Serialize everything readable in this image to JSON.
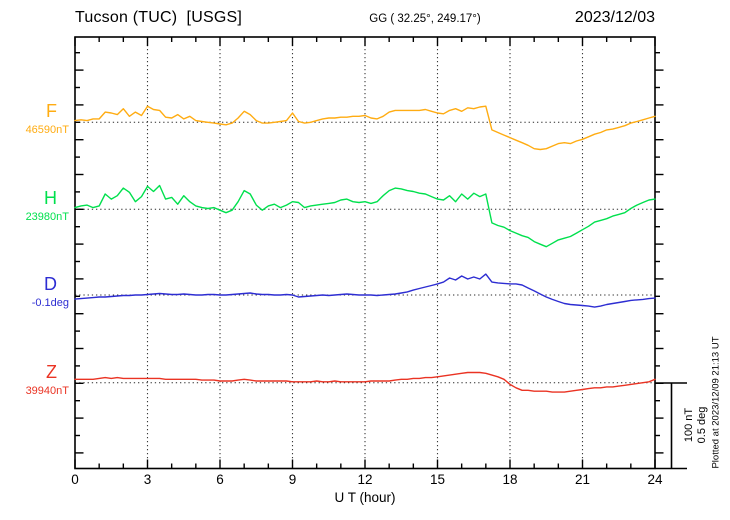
{
  "header": {
    "station": "Tucson (TUC)  [USGS]",
    "coords": "GG ( 32.25°, 249.17°)",
    "date": "2023/12/03"
  },
  "channels": [
    {
      "letter": "F",
      "value_label": "46590nT",
      "color": "#ffac12"
    },
    {
      "letter": "H",
      "value_label": "23980nT",
      "color": "#00e04d"
    },
    {
      "letter": "D",
      "value_label": "-0.1deg",
      "color": "#2d2dd2"
    },
    {
      "letter": "Z",
      "value_label": "39940nT",
      "color": "#ea3323"
    }
  ],
  "xaxis": {
    "label": "U T (hour)",
    "tick_labels": [
      "0",
      "3",
      "6",
      "9",
      "12",
      "15",
      "18",
      "21",
      "24"
    ]
  },
  "scale_bar": {
    "line1": "100 nT",
    "line2": "0.5 deg"
  },
  "timestamp_note": "Plotted at 2023/12/09 21:13 UT",
  "chart_data": {
    "type": "line",
    "title": "Tucson (TUC) [USGS] magnetogram 2023/12/03",
    "xlabel": "U T (hour)",
    "x_start_hour": 0,
    "x_end_hour": 24,
    "x_step_hour": 0.25,
    "x_ticks": [
      0,
      3,
      6,
      9,
      12,
      15,
      18,
      21,
      24
    ],
    "grid": "dotted vertical every 3 h, dotted baseline per trace",
    "legend_position": "left margin (colored channel letters)",
    "scale_per_division": {
      "nT": 100,
      "deg": 0.5
    },
    "series": [
      {
        "name": "F",
        "units": "nT",
        "base": 46590,
        "values": [
          46592,
          46593,
          46592,
          46594,
          46594,
          46602,
          46601,
          46599,
          46606,
          46597,
          46602,
          46598,
          46609,
          46605,
          46604,
          46596,
          46595,
          46599,
          46594,
          46597,
          46592,
          46591,
          46590,
          46589,
          46588,
          46587,
          46589,
          46595,
          46603,
          46599,
          46592,
          46589,
          46589,
          46590,
          46591,
          46592,
          46601,
          46591,
          46589,
          46590,
          46592,
          46594,
          46595,
          46595,
          46596,
          46596,
          46597,
          46597,
          46598,
          46595,
          46594,
          46597,
          46602,
          46604,
          46604,
          46604,
          46604,
          46604,
          46605,
          46603,
          46601,
          46600,
          46604,
          46606,
          46603,
          46607,
          46606,
          46608,
          46609,
          46581,
          46578,
          46575,
          46572,
          46569,
          46566,
          46563,
          46559,
          46558,
          46559,
          46562,
          46565,
          46566,
          46565,
          46568,
          46570,
          46573,
          46576,
          46578,
          46581,
          46582,
          46584,
          46586,
          46589,
          46591,
          46593,
          46595,
          46597
        ]
      },
      {
        "name": "H",
        "units": "nT",
        "base": 23980,
        "values": [
          23982,
          23984,
          23985,
          23982,
          23984,
          23998,
          23992,
          23996,
          24005,
          24000,
          23989,
          23995,
          24007,
          24001,
          24008,
          23992,
          23994,
          23986,
          23996,
          23989,
          23984,
          23982,
          23981,
          23982,
          23979,
          23976,
          23979,
          23989,
          24002,
          23998,
          23985,
          23979,
          23984,
          23986,
          23982,
          23985,
          23989,
          23988,
          23982,
          23984,
          23985,
          23986,
          23987,
          23988,
          23991,
          23992,
          23989,
          23988,
          23989,
          23987,
          23989,
          23996,
          24002,
          24005,
          24004,
          24002,
          24001,
          23999,
          23998,
          23995,
          23992,
          23991,
          23996,
          23989,
          23998,
          23992,
          23999,
          23995,
          23998,
          23964,
          23961,
          23959,
          23955,
          23952,
          23949,
          23947,
          23942,
          23939,
          23936,
          23940,
          23944,
          23946,
          23948,
          23952,
          23956,
          23960,
          23965,
          23967,
          23969,
          23972,
          23974,
          23976,
          23981,
          23985,
          23988,
          23991,
          23992
        ]
      },
      {
        "name": "D",
        "units": "deg",
        "base": -0.1,
        "values": [
          -0.124,
          -0.121,
          -0.118,
          -0.115,
          -0.112,
          -0.112,
          -0.109,
          -0.106,
          -0.103,
          -0.103,
          -0.1,
          -0.1,
          -0.097,
          -0.094,
          -0.091,
          -0.094,
          -0.097,
          -0.097,
          -0.094,
          -0.097,
          -0.1,
          -0.1,
          -0.097,
          -0.097,
          -0.1,
          -0.1,
          -0.097,
          -0.094,
          -0.091,
          -0.088,
          -0.094,
          -0.097,
          -0.097,
          -0.1,
          -0.1,
          -0.097,
          -0.1,
          -0.112,
          -0.109,
          -0.106,
          -0.103,
          -0.1,
          -0.103,
          -0.1,
          -0.097,
          -0.094,
          -0.097,
          -0.1,
          -0.1,
          -0.1,
          -0.103,
          -0.1,
          -0.097,
          -0.094,
          -0.088,
          -0.082,
          -0.071,
          -0.062,
          -0.053,
          -0.044,
          -0.035,
          -0.024,
          0.0,
          -0.012,
          0.012,
          -0.006,
          0.006,
          -0.006,
          0.023,
          -0.024,
          -0.029,
          -0.032,
          -0.035,
          -0.035,
          -0.041,
          -0.059,
          -0.076,
          -0.094,
          -0.112,
          -0.126,
          -0.138,
          -0.15,
          -0.156,
          -0.159,
          -0.162,
          -0.165,
          -0.171,
          -0.165,
          -0.156,
          -0.15,
          -0.144,
          -0.138,
          -0.132,
          -0.129,
          -0.126,
          -0.121,
          -0.118
        ]
      },
      {
        "name": "Z",
        "units": "nT",
        "base": 39940,
        "values": [
          39944,
          39944,
          39944,
          39944,
          39945,
          39946,
          39945,
          39946,
          39945,
          39945,
          39945,
          39945,
          39945,
          39945,
          39945,
          39944,
          39944,
          39944,
          39944,
          39944,
          39944,
          39943,
          39943,
          39943,
          39942,
          39942,
          39942,
          39943,
          39944,
          39943,
          39942,
          39942,
          39942,
          39942,
          39942,
          39942,
          39941,
          39941,
          39941,
          39941,
          39942,
          39941,
          39941,
          39942,
          39941,
          39941,
          39941,
          39941,
          39941,
          39942,
          39942,
          39942,
          39942,
          39943,
          39944,
          39944,
          39945,
          39945,
          39946,
          39946,
          39947,
          39948,
          39949,
          39950,
          39951,
          39952,
          39952,
          39952,
          39951,
          39949,
          39947,
          39944,
          39938,
          39934,
          39931,
          39931,
          39930,
          39930,
          39930,
          39929,
          39929,
          39929,
          39930,
          39931,
          39932,
          39933,
          39934,
          39934,
          39935,
          39935,
          39936,
          39937,
          39938,
          39939,
          39940,
          39941,
          39944
        ]
      }
    ]
  }
}
